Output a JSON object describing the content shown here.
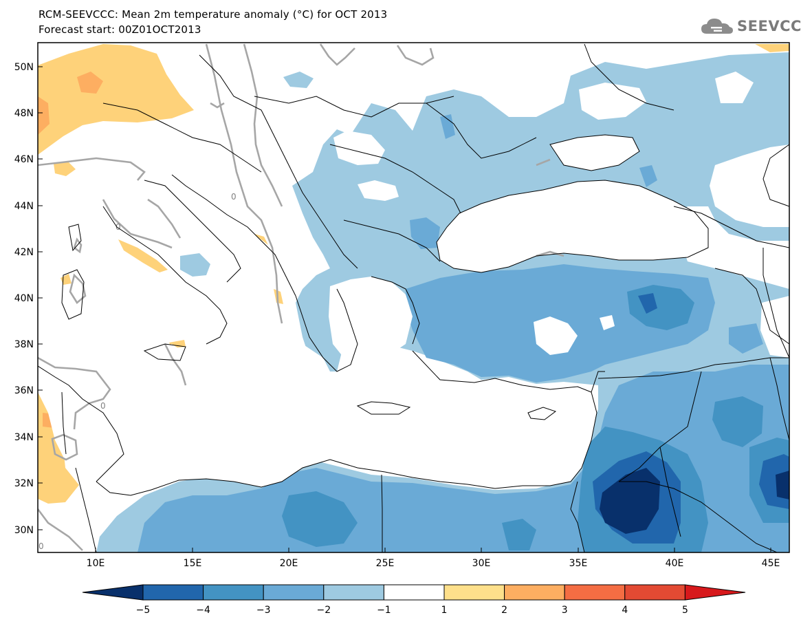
{
  "header": {
    "title": "RCM-SEEVCCC: Mean 2m temperature anomaly (°C) for OCT 2013",
    "subtitle": "Forecast start: 00Z01OCT2013"
  },
  "logo": {
    "icon": "cloud-icon",
    "text": "SEEVCCC",
    "color": "#7a7a7a"
  },
  "map": {
    "lon_range": [
      7,
      46
    ],
    "lat_range": [
      29,
      51
    ],
    "lat_ticks": [
      "50N",
      "48N",
      "46N",
      "44N",
      "42N",
      "40N",
      "38N",
      "36N",
      "34N",
      "32N",
      "30N"
    ],
    "lon_ticks": [
      "10E",
      "15E",
      "20E",
      "25E",
      "30E",
      "35E",
      "40E",
      "45E"
    ],
    "contour_label": "0"
  },
  "colorbar": {
    "labels": [
      "−5",
      "−4",
      "−3",
      "−2",
      "−1",
      "1",
      "2",
      "3",
      "4",
      "5"
    ],
    "colors": [
      "#08306b",
      "#2166ac",
      "#4393c3",
      "#6aaad6",
      "#9ecae1",
      "#ffffff",
      "#fee08b",
      "#fdae61",
      "#f46d43",
      "#e34a33",
      "#d7191c"
    ]
  },
  "palette": {
    "n1": "#9ecae1",
    "n2": "#6aaad6",
    "n3": "#4393c3",
    "n4": "#2166ac",
    "n5": "#08306b",
    "p1": "#fed27a",
    "p2": "#fdae61"
  }
}
